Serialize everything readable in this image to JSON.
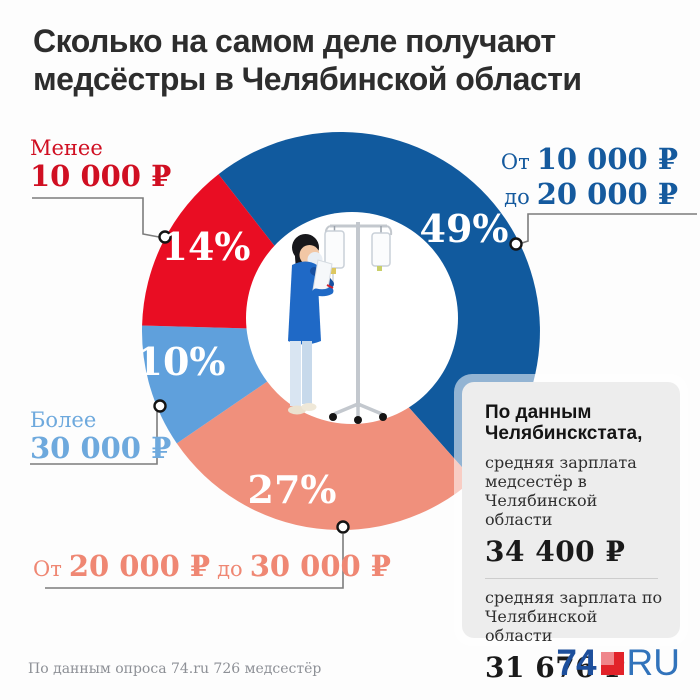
{
  "title": {
    "line1": "Сколько на самом деле получают",
    "line2": "медсёстры в Челябинской области"
  },
  "chart_data": {
    "type": "pie",
    "subtype": "donut",
    "title": "Сколько на самом деле получают медсёстры в Челябинской области",
    "unit": "percent of surveyed nurses",
    "start_angle": 322,
    "legend_position": "around",
    "segments": [
      {
        "label": "От 10 000 ₽ до 20 000 ₽",
        "value": 49,
        "pct_label": "49%",
        "color": "#115a9e"
      },
      {
        "label": "От 20 000 ₽ до 30 000 ₽",
        "value": 27,
        "pct_label": "27%",
        "color": "#f0907c"
      },
      {
        "label": "Более 30 000 ₽",
        "value": 10,
        "pct_label": "10%",
        "color": "#5fa0dc"
      },
      {
        "label": "Менее 10 000 ₽",
        "value": 14,
        "pct_label": "14%",
        "color": "#e90d23"
      }
    ],
    "source": "По данным опроса 74.ru 726 медсестёр"
  },
  "labels": {
    "less_10k": {
      "word": "Менее",
      "amount": "10 000 ₽",
      "color": "#d00f22"
    },
    "from_10k_to_20k": {
      "word1": "От",
      "amount1": "10 000 ₽",
      "word2": "до",
      "amount2": "20 000 ₽",
      "color": "#155a9e"
    },
    "more_30k": {
      "word": "Более",
      "amount": "30 000 ₽",
      "color": "#6ea9dd"
    },
    "from_20k_to_30k": {
      "word1": "От",
      "amount1": "20 000 ₽",
      "word2": "до",
      "amount2": "30 000 ₽",
      "color": "#ef8773"
    }
  },
  "stat_box": {
    "heading_line1": "По данным",
    "heading_line2": "Челябинскстата,",
    "note1_line1": "средняя зарплата",
    "note1_line2": "медсестёр в",
    "note1_line3": "Челябинской области",
    "value1": "34 400 ₽",
    "note2_line1": "средняя зарплата по",
    "note2_line2": "Челябинской области",
    "value2": "31 676 ₽"
  },
  "footer": {
    "source": "По данным опроса 74.ru 726 медсестёр",
    "logo_text1": "74",
    "logo_text2": "RU",
    "logo_red": "#e2232a",
    "logo_blue": "#1d4f9c"
  }
}
